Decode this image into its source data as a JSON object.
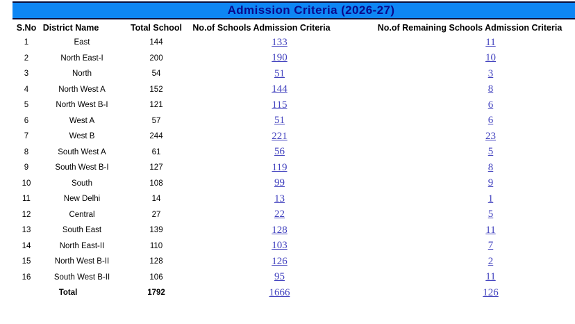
{
  "title": "Admission Criteria (2026-27)",
  "colors": {
    "title_bar_bg": "#0e86f4",
    "title_text": "#0a0a8c",
    "link": "#4343bf",
    "text": "#000000"
  },
  "table": {
    "columns": [
      "S.No",
      "District Name",
      "Total School",
      "No.of Schools Admission Criteria",
      "No.of Remaining Schools Admission Criteria"
    ],
    "rows": [
      {
        "sno": "1",
        "district": "East",
        "total": "144",
        "criteria": "133",
        "remaining": "11"
      },
      {
        "sno": "2",
        "district": "North East-I",
        "total": "200",
        "criteria": "190",
        "remaining": "10"
      },
      {
        "sno": "3",
        "district": "North",
        "total": "54",
        "criteria": "51",
        "remaining": "3"
      },
      {
        "sno": "4",
        "district": "North West A",
        "total": "152",
        "criteria": "144",
        "remaining": "8"
      },
      {
        "sno": "5",
        "district": "North West B-I",
        "total": "121",
        "criteria": "115",
        "remaining": "6"
      },
      {
        "sno": "6",
        "district": "West A",
        "total": "57",
        "criteria": "51",
        "remaining": "6"
      },
      {
        "sno": "7",
        "district": "West B",
        "total": "244",
        "criteria": "221",
        "remaining": "23"
      },
      {
        "sno": "8",
        "district": "South West A",
        "total": "61",
        "criteria": "56",
        "remaining": "5"
      },
      {
        "sno": "9",
        "district": "South West B-I",
        "total": "127",
        "criteria": "119",
        "remaining": "8"
      },
      {
        "sno": "10",
        "district": "South",
        "total": "108",
        "criteria": "99",
        "remaining": "9"
      },
      {
        "sno": "11",
        "district": "New Delhi",
        "total": "14",
        "criteria": "13",
        "remaining": "1"
      },
      {
        "sno": "12",
        "district": "Central",
        "total": "27",
        "criteria": "22",
        "remaining": "5"
      },
      {
        "sno": "13",
        "district": "South East",
        "total": "139",
        "criteria": "128",
        "remaining": "11"
      },
      {
        "sno": "14",
        "district": "North East-II",
        "total": "110",
        "criteria": "103",
        "remaining": "7"
      },
      {
        "sno": "15",
        "district": "North West B-II",
        "total": "128",
        "criteria": "126",
        "remaining": "2"
      },
      {
        "sno": "16",
        "district": "South West B-II",
        "total": "106",
        "criteria": "95",
        "remaining": "11"
      }
    ],
    "total_row": {
      "label": "Total",
      "total": "1792",
      "criteria": "1666",
      "remaining": "126"
    }
  }
}
